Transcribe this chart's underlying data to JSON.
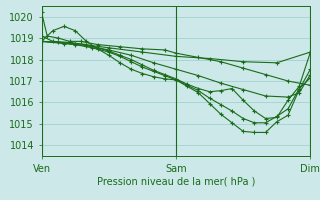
{
  "title": "Pression niveau de la mer( hPa )",
  "ylabel_ticks": [
    1014,
    1015,
    1016,
    1017,
    1018,
    1019,
    1020
  ],
  "ylim": [
    1013.5,
    1020.5
  ],
  "xlim": [
    0,
    48
  ],
  "xtick_positions": [
    0,
    24,
    48
  ],
  "xtick_labels": [
    "Ven",
    "Sam",
    "Dim"
  ],
  "bg_color": "#cce8e8",
  "grid_color": "#99cccc",
  "line_color": "#1a6b1a",
  "series": [
    [
      0,
      1020.2,
      1,
      1019.1,
      3,
      1019.0,
      5,
      1018.85,
      7,
      1018.85,
      10,
      1018.7,
      14,
      1018.6,
      18,
      1018.5,
      22,
      1018.45,
      24,
      1018.3,
      28,
      1018.1,
      32,
      1017.9,
      36,
      1017.6,
      40,
      1017.3,
      44,
      1017.0,
      48,
      1016.8
    ],
    [
      0,
      1018.85,
      2,
      1019.35,
      4,
      1019.55,
      6,
      1019.35,
      8,
      1018.85,
      10,
      1018.5,
      12,
      1018.2,
      14,
      1017.85,
      16,
      1017.55,
      18,
      1017.35,
      20,
      1017.2,
      22,
      1017.1,
      24,
      1017.05,
      26,
      1016.75,
      28,
      1016.45,
      30,
      1015.95,
      32,
      1015.45,
      34,
      1015.05,
      36,
      1014.65,
      38,
      1014.6,
      40,
      1014.6,
      42,
      1015.1,
      44,
      1015.4,
      46,
      1016.6,
      48,
      1017.55
    ],
    [
      0,
      1018.85,
      3,
      1018.8,
      6,
      1018.7,
      9,
      1018.55,
      12,
      1018.35,
      14,
      1018.15,
      16,
      1017.9,
      18,
      1017.65,
      20,
      1017.45,
      22,
      1017.25,
      24,
      1017.05,
      26,
      1016.8,
      28,
      1016.55,
      30,
      1016.2,
      32,
      1015.9,
      34,
      1015.6,
      36,
      1015.25,
      38,
      1015.05,
      40,
      1015.05,
      42,
      1015.35,
      44,
      1015.7,
      46,
      1016.65,
      48,
      1017.15
    ],
    [
      0,
      1018.85,
      4,
      1018.75,
      8,
      1018.65,
      12,
      1018.45,
      16,
      1018.2,
      20,
      1017.85,
      24,
      1017.55,
      28,
      1017.25,
      32,
      1016.9,
      36,
      1016.6,
      40,
      1016.3,
      44,
      1016.25,
      46,
      1016.45,
      48,
      1017.3
    ],
    [
      0,
      1018.85,
      6,
      1018.75,
      12,
      1018.55,
      18,
      1018.35,
      24,
      1018.15,
      30,
      1018.05,
      36,
      1017.9,
      42,
      1017.85,
      48,
      1018.35
    ],
    [
      0,
      1019.1,
      2,
      1018.85,
      5,
      1018.8,
      8,
      1018.7,
      10,
      1018.55,
      12,
      1018.4,
      14,
      1018.2,
      16,
      1018.0,
      18,
      1017.75,
      20,
      1017.5,
      22,
      1017.3,
      24,
      1017.1,
      26,
      1016.85,
      28,
      1016.65,
      30,
      1016.5,
      32,
      1016.55,
      34,
      1016.65,
      36,
      1016.1,
      38,
      1015.6,
      40,
      1015.25,
      42,
      1015.3,
      44,
      1016.1,
      46,
      1016.75,
      48,
      1018.35
    ]
  ],
  "marker": "+",
  "markersize": 3,
  "linewidth": 0.8
}
